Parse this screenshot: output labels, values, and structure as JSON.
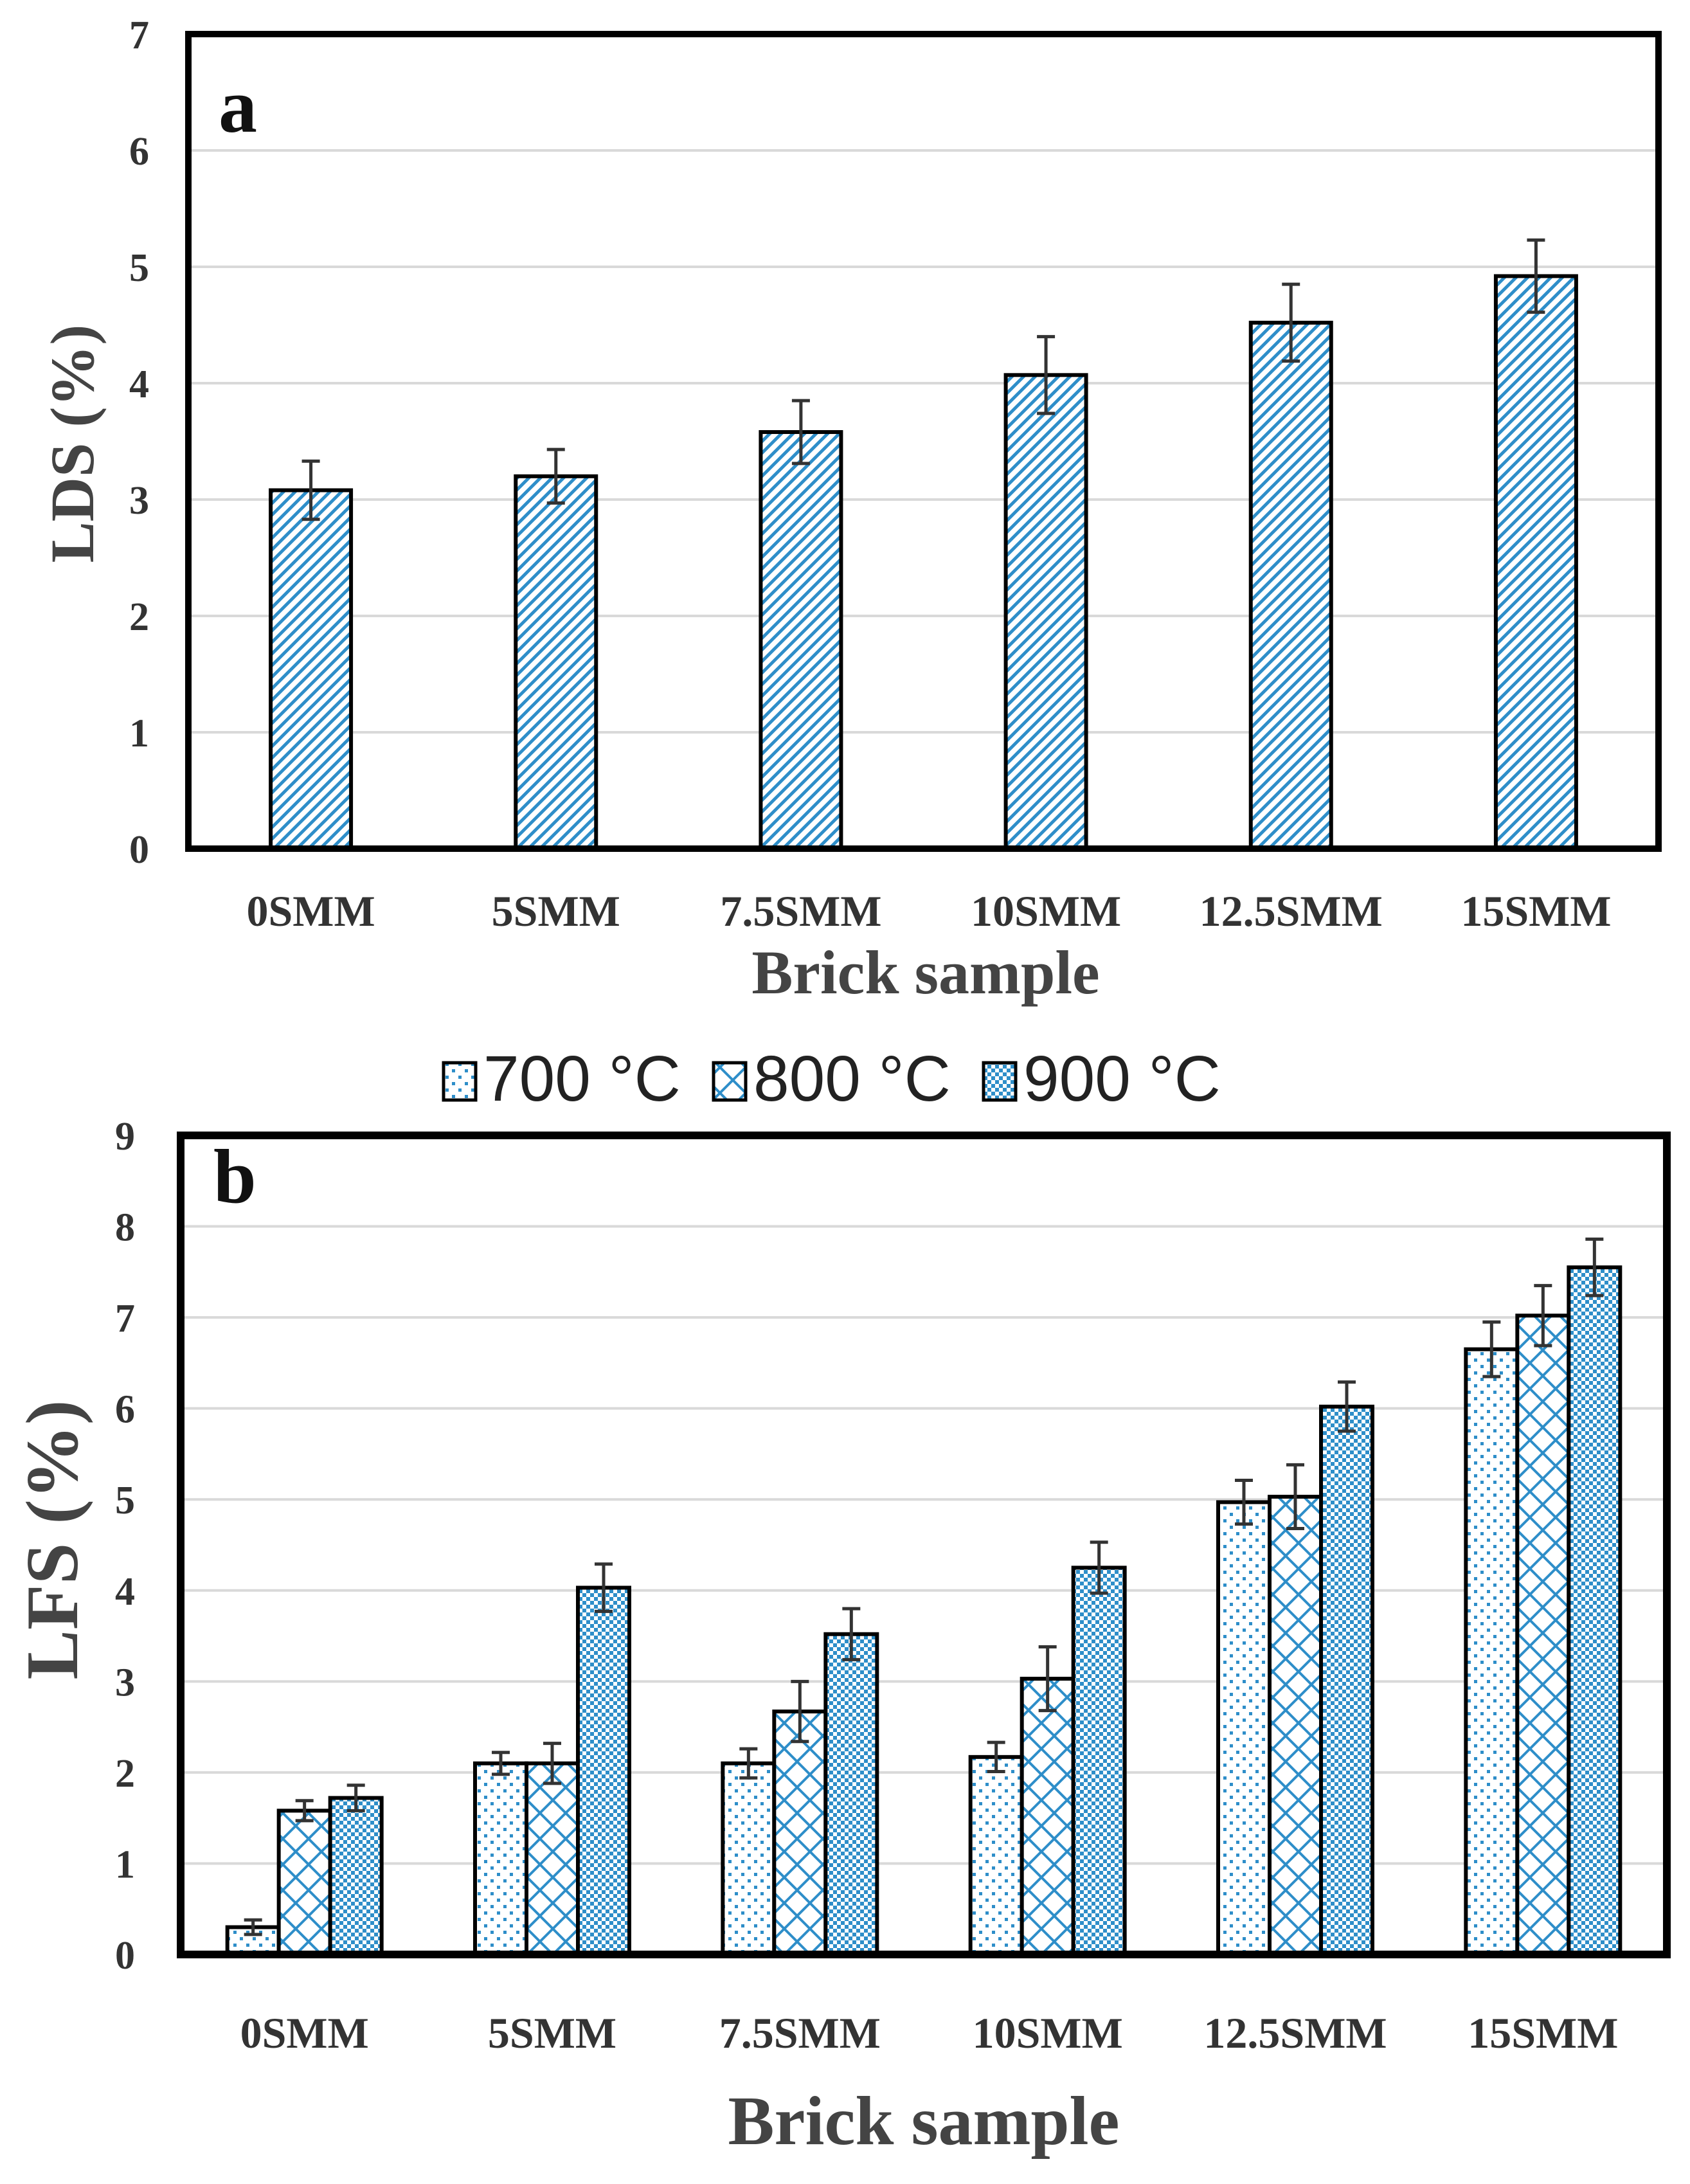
{
  "chart_data": [
    {
      "type": "bar",
      "panel_label": "a",
      "xlabel": "Brick sample",
      "ylabel": "LDS (%)",
      "ylim": [
        0,
        7
      ],
      "yticks": [
        "0",
        "1",
        "2",
        "3",
        "4",
        "5",
        "6",
        "7"
      ],
      "categories": [
        "0SMM",
        "5SMM",
        "7.5SMM",
        "10SMM",
        "12.5SMM",
        "15SMM"
      ],
      "series": [
        {
          "values": [
            3.08,
            3.2,
            3.58,
            4.07,
            4.52,
            4.92
          ],
          "errors": [
            0.25,
            0.23,
            0.27,
            0.33,
            0.33,
            0.31
          ],
          "pattern": "diagonal-hatch"
        }
      ],
      "grid": true,
      "bar_color": "#2e8ec9"
    },
    {
      "type": "bar",
      "panel_label": "b",
      "xlabel": "Brick sample",
      "ylabel": "LFS (%)",
      "ylim": [
        0,
        9
      ],
      "yticks": [
        "0",
        "1",
        "2",
        "3",
        "4",
        "5",
        "6",
        "7",
        "8",
        "9"
      ],
      "categories": [
        "0SMM",
        "5SMM",
        "7.5SMM",
        "10SMM",
        "12.5SMM",
        "15SMM"
      ],
      "legend_position": "top-center",
      "series": [
        {
          "name": "700 °C",
          "values": [
            0.3,
            2.1,
            2.1,
            2.17,
            4.97,
            6.65
          ],
          "errors": [
            0.08,
            0.12,
            0.16,
            0.16,
            0.24,
            0.3
          ],
          "pattern": "dots"
        },
        {
          "name": "800 °C",
          "values": [
            1.58,
            2.1,
            2.67,
            3.03,
            5.03,
            7.02
          ],
          "errors": [
            0.11,
            0.22,
            0.33,
            0.35,
            0.35,
            0.33
          ],
          "pattern": "diamond-lattice"
        },
        {
          "name": "900 °C",
          "values": [
            1.72,
            4.03,
            3.52,
            4.25,
            6.02,
            7.55
          ],
          "errors": [
            0.14,
            0.26,
            0.28,
            0.28,
            0.27,
            0.31
          ],
          "pattern": "fine-checker"
        }
      ],
      "grid": true,
      "bar_color": "#2e8ec9"
    }
  ]
}
